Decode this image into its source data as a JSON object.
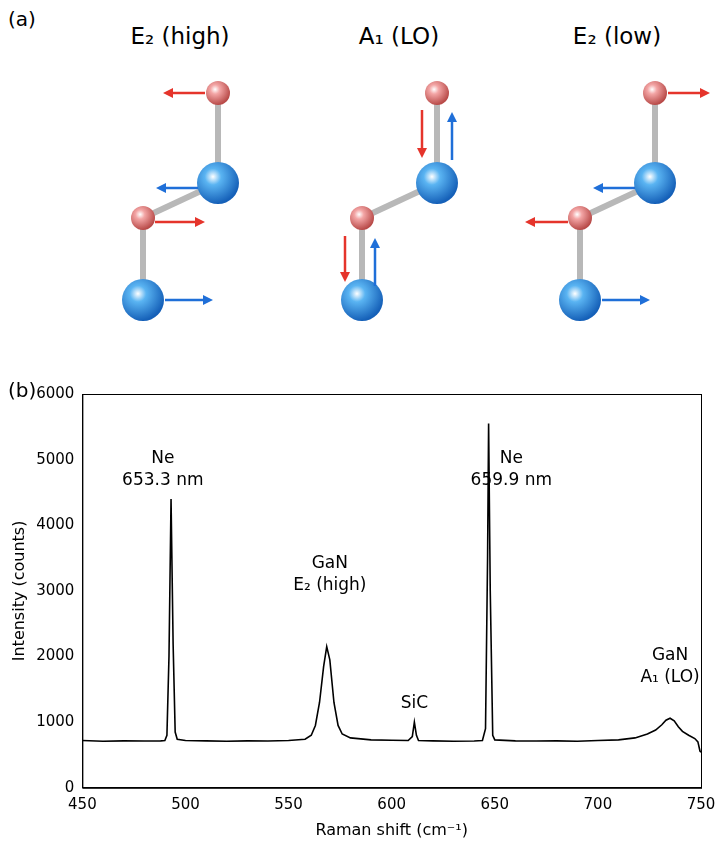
{
  "panel_a": {
    "label": "(a)",
    "modes": [
      "E₂ (high)",
      "A₁ (LO)",
      "E₂ (low)"
    ]
  },
  "chart_data": {
    "type": "line",
    "label": "(b)",
    "x_label": "Raman shift (cm⁻¹)",
    "y_label": "Intensity (counts)",
    "x": [
      450,
      460,
      470,
      480,
      488,
      490,
      491,
      492,
      493,
      494,
      495,
      496,
      500,
      510,
      520,
      530,
      540,
      550,
      558,
      561,
      563,
      565,
      567,
      568.5,
      570,
      572,
      574,
      576,
      580,
      590,
      600,
      608,
      610,
      611,
      612,
      613,
      620,
      630,
      640,
      644,
      645.5,
      646.5,
      647,
      647.8,
      649,
      650,
      660,
      670,
      680,
      690,
      700,
      710,
      718,
      724,
      728,
      731,
      733,
      735,
      737,
      739,
      741,
      744,
      747,
      748.5,
      749.5,
      750
    ],
    "values": [
      720,
      710,
      715,
      712,
      715,
      720,
      800,
      2000,
      4400,
      2200,
      850,
      740,
      720,
      715,
      710,
      715,
      712,
      720,
      740,
      800,
      950,
      1300,
      1850,
      2150,
      1950,
      1300,
      950,
      820,
      760,
      730,
      725,
      720,
      780,
      1000,
      800,
      720,
      715,
      710,
      712,
      720,
      900,
      3500,
      5550,
      3000,
      800,
      730,
      715,
      712,
      715,
      710,
      720,
      730,
      760,
      820,
      880,
      960,
      1030,
      1060,
      1020,
      930,
      860,
      800,
      750,
      700,
      560,
      540
    ],
    "color": "#000000",
    "xlim": [
      450,
      750
    ],
    "xticks": [
      450,
      500,
      550,
      600,
      650,
      700,
      750
    ],
    "ylim": [
      0,
      6000
    ],
    "yticks": [
      0,
      1000,
      2000,
      3000,
      4000,
      5000,
      6000
    ],
    "grid": false,
    "annotations": [
      {
        "lines": [
          "Ne",
          "653.3 nm"
        ],
        "x": 489,
        "y": 4550
      },
      {
        "lines": [
          "GaN",
          "E₂ (high)"
        ],
        "x": 570,
        "y": 2950
      },
      {
        "lines": [
          "SiC"
        ],
        "x": 611,
        "y": 1150
      },
      {
        "lines": [
          "Ne",
          "659.9 nm"
        ],
        "x": 658,
        "y": 4550
      },
      {
        "lines": [
          "GaN",
          "A₁ (LO)"
        ],
        "x": 735,
        "y": 1550
      }
    ]
  }
}
